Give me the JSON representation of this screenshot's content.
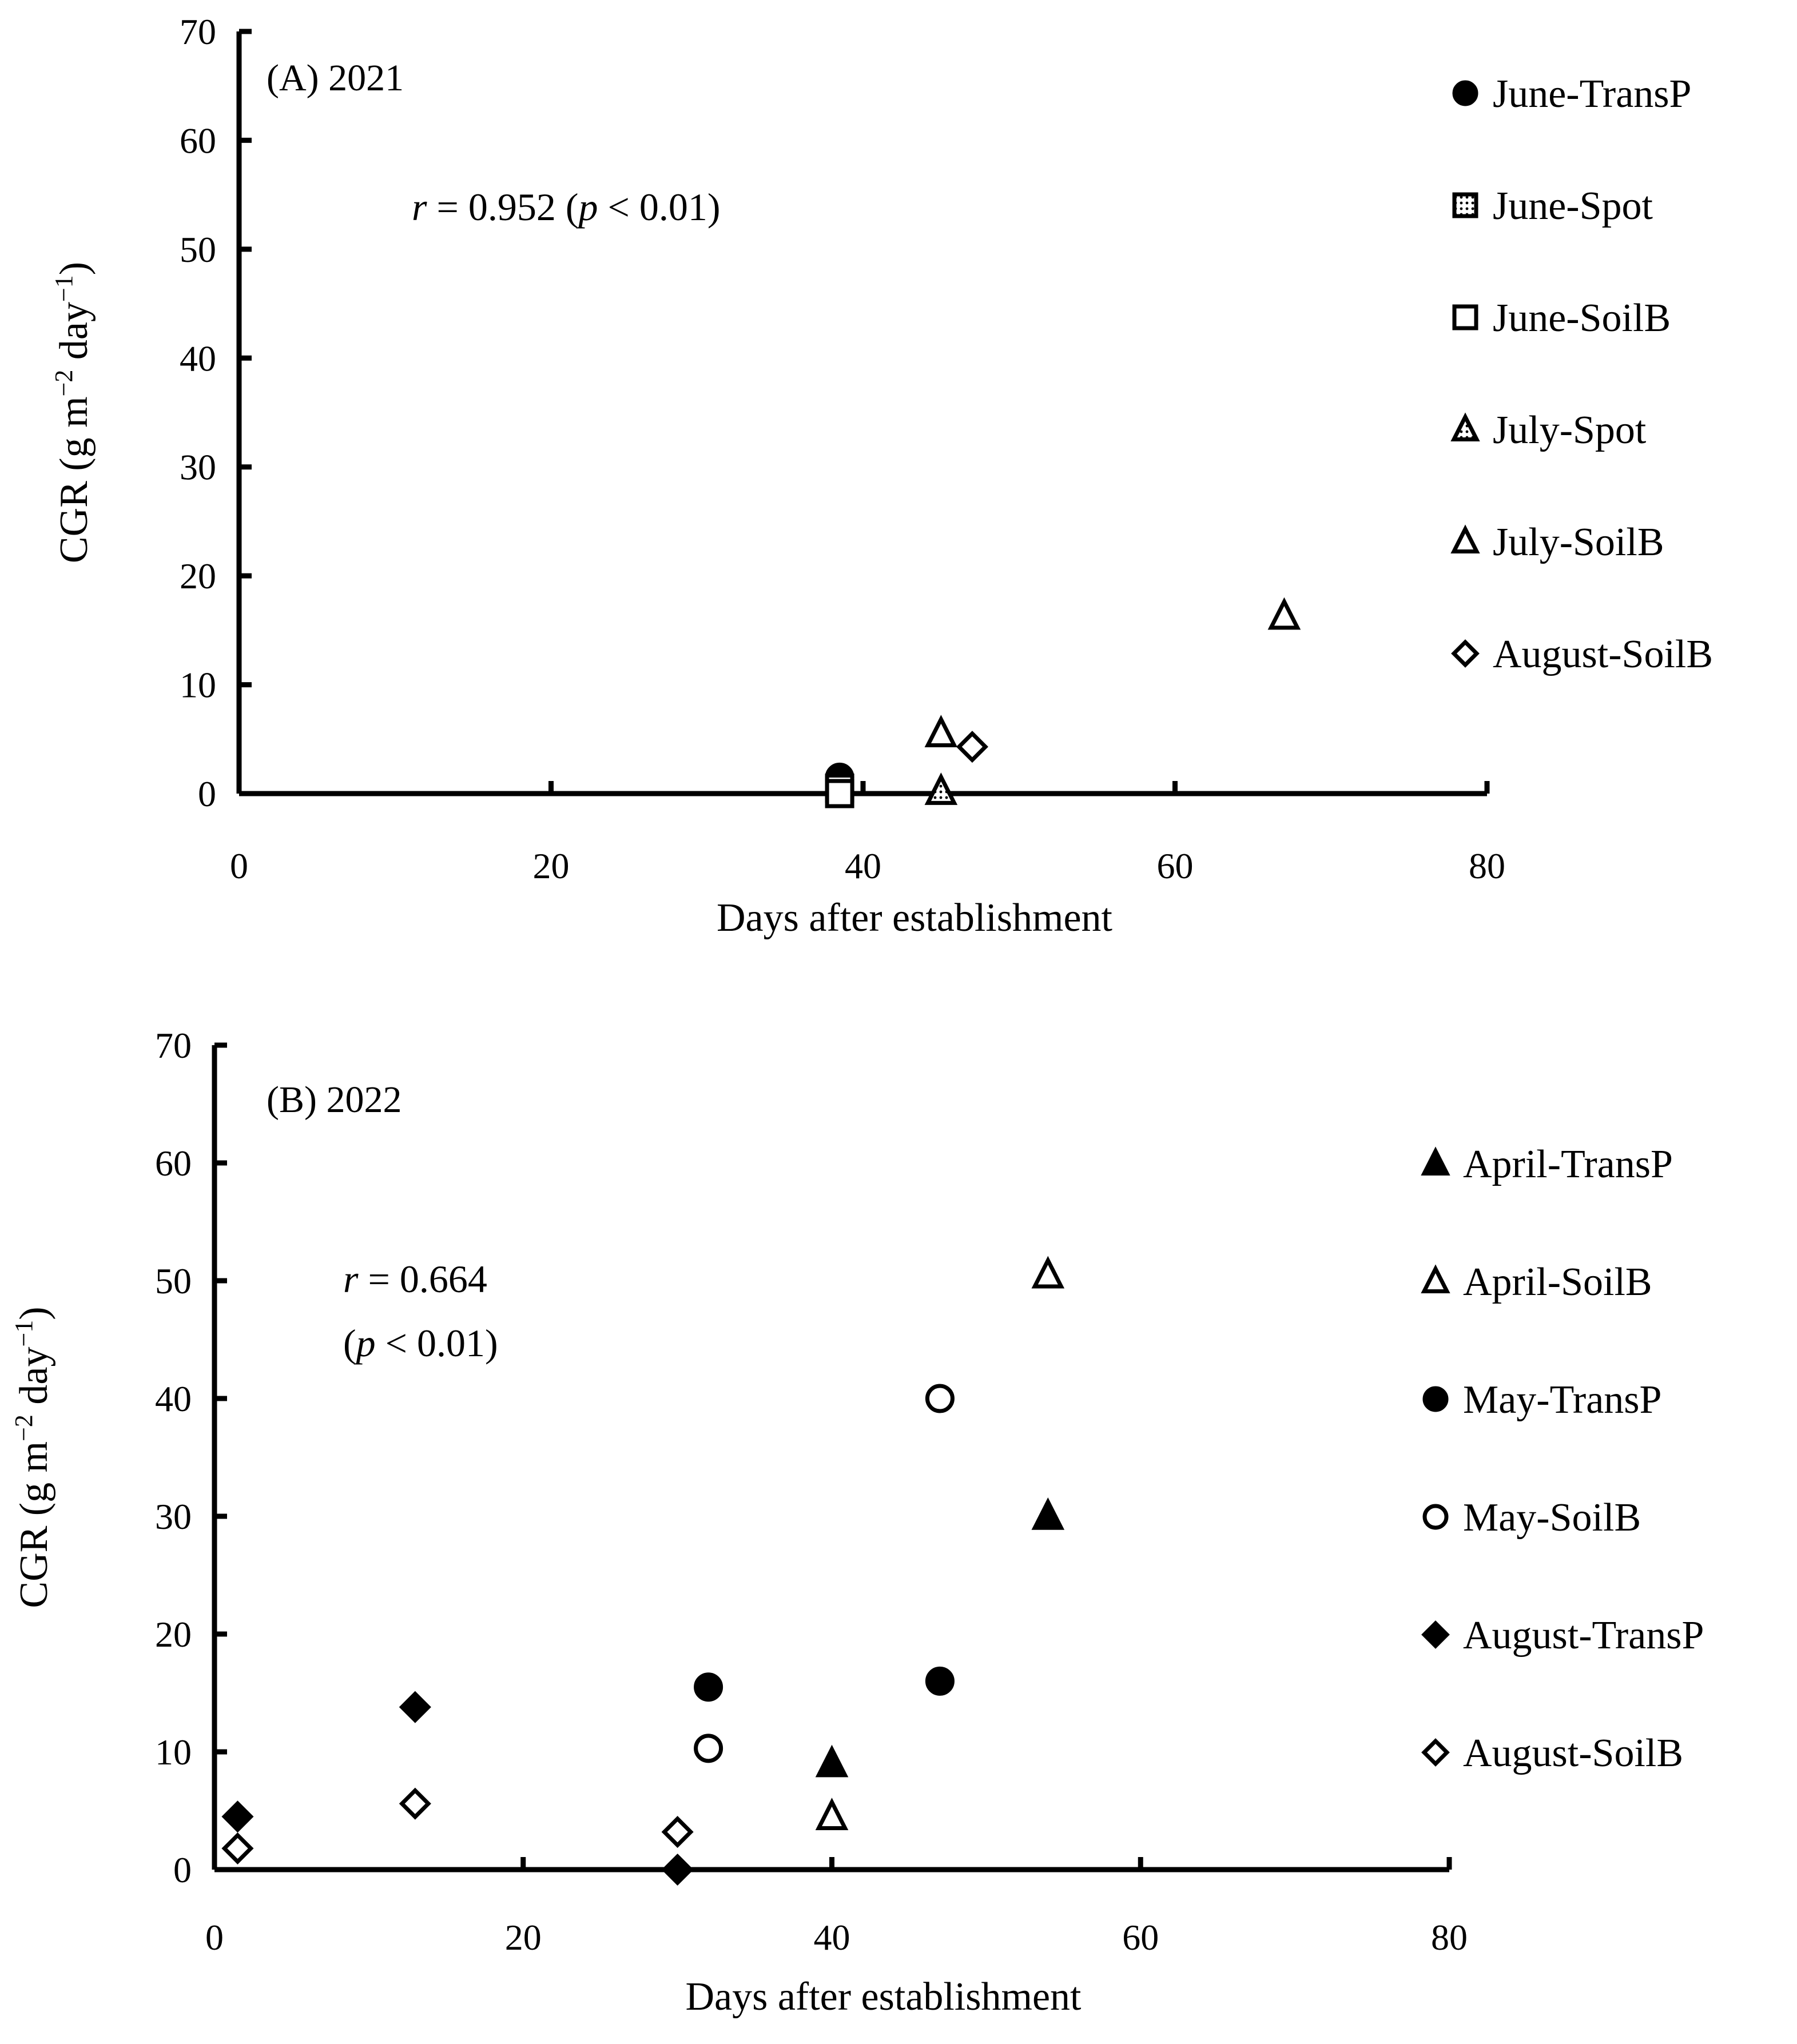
{
  "chart_data": [
    {
      "type": "scatter",
      "title": "(A) 2021",
      "annotation": {
        "r_symbol": "r",
        "r_text": " = 0.952 (",
        "p_symbol": "p",
        "p_text": " < 0.01)"
      },
      "xlabel": "Days after establishment",
      "ylabel": {
        "prefix": "CGR (g m",
        "exp1": "−2",
        "mid": " day",
        "exp2": "−1",
        "suffix": ")"
      },
      "xlim": [
        0,
        80
      ],
      "ylim": [
        0,
        70
      ],
      "xticks": [
        "0",
        "20",
        "40",
        "60",
        "80"
      ],
      "yticks": [
        "0",
        "10",
        "20",
        "30",
        "40",
        "50",
        "60",
        "70"
      ],
      "grid": false,
      "legend_position": "right",
      "series": [
        {
          "name": "June-TransP",
          "marker": "circle-filled",
          "points": [
            [
              38.5,
              1.5
            ]
          ]
        },
        {
          "name": "June-Spot",
          "marker": "square-dotted",
          "points": [
            [
              38.5,
              0.5
            ]
          ]
        },
        {
          "name": "June-SoilB",
          "marker": "square-open",
          "points": [
            [
              38.5,
              0.0
            ]
          ]
        },
        {
          "name": "July-Spot",
          "marker": "triangle-dotted",
          "points": [
            [
              45,
              0.2
            ]
          ]
        },
        {
          "name": "July-SoilB",
          "marker": "triangle-open",
          "points": [
            [
              45,
              5.5
            ],
            [
              67,
              16.3
            ]
          ]
        },
        {
          "name": "August-SoilB",
          "marker": "diamond-open",
          "points": [
            [
              47,
              4.3
            ]
          ]
        }
      ]
    },
    {
      "type": "scatter",
      "title": "(B) 2022",
      "annotation": {
        "r_symbol": "r",
        "r_text": " = 0.664",
        "line2_open": "(",
        "p_symbol": "p",
        "p_text": " < 0.01)"
      },
      "xlabel": "Days after establishment",
      "ylabel": {
        "prefix": "CGR (g m",
        "exp1": "−2",
        "mid": " day",
        "exp2": "−1",
        "suffix": ")"
      },
      "xlim": [
        0,
        80
      ],
      "ylim": [
        0,
        70
      ],
      "xticks": [
        "0",
        "20",
        "40",
        "60",
        "80"
      ],
      "yticks": [
        "0",
        "10",
        "20",
        "30",
        "40",
        "50",
        "60",
        "70"
      ],
      "grid": false,
      "legend_position": "right",
      "series": [
        {
          "name": "April-TransP",
          "marker": "triangle-filled",
          "points": [
            [
              40,
              9.0
            ],
            [
              54,
              30.0
            ]
          ]
        },
        {
          "name": "April-SoilB",
          "marker": "triangle-open",
          "points": [
            [
              40,
              4.5
            ],
            [
              54,
              50.5
            ]
          ]
        },
        {
          "name": "May-TransP",
          "marker": "circle-filled",
          "points": [
            [
              32,
              15.5
            ],
            [
              47,
              16.0
            ]
          ]
        },
        {
          "name": "May-SoilB",
          "marker": "circle-open",
          "points": [
            [
              32,
              10.3
            ],
            [
              47,
              40.0
            ]
          ]
        },
        {
          "name": "August-TransP",
          "marker": "diamond-filled",
          "points": [
            [
              1.5,
              4.5
            ],
            [
              13,
              13.8
            ],
            [
              30,
              0.0
            ]
          ]
        },
        {
          "name": "August-SoilB",
          "marker": "diamond-open",
          "points": [
            [
              1.5,
              1.8
            ],
            [
              13,
              5.6
            ],
            [
              30,
              3.2
            ]
          ]
        }
      ]
    }
  ]
}
